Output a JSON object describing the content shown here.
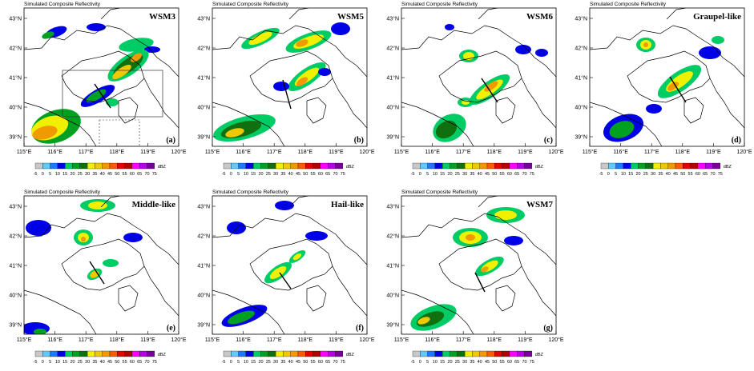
{
  "panel_title": "Simulated Composite Reflectivity",
  "x_ticks": [
    "115°E",
    "116°E",
    "117°E",
    "118°E",
    "119°E",
    "120°E"
  ],
  "y_ticks": [
    "39°N",
    "40°N",
    "41°N",
    "42°N",
    "43°N"
  ],
  "colorbar": {
    "unit": "dBZ",
    "labels": [
      "-5",
      "0",
      "5",
      "10",
      "15",
      "20",
      "25",
      "30",
      "35",
      "40",
      "45",
      "50",
      "55",
      "60",
      "65",
      "70",
      "75"
    ],
    "colors": [
      "#c8c8c8",
      "#64c8ff",
      "#1f78ff",
      "#0000e6",
      "#00cc66",
      "#00a020",
      "#107010",
      "#f0f000",
      "#f0c800",
      "#f09a00",
      "#ff5a00",
      "#e60000",
      "#b40000",
      "#ff00ff",
      "#b400e6",
      "#780096"
    ]
  },
  "panels": [
    {
      "name": "WSM3",
      "letter": "(a)"
    },
    {
      "name": "WSM5",
      "letter": "(b)"
    },
    {
      "name": "WSM6",
      "letter": "(c)"
    },
    {
      "name": "Graupel-like",
      "letter": "(d)"
    },
    {
      "name": "Middle-like",
      "letter": "(e)"
    },
    {
      "name": "Hail-like",
      "letter": "(f)"
    },
    {
      "name": "WSM7",
      "letter": "(g)"
    }
  ]
}
